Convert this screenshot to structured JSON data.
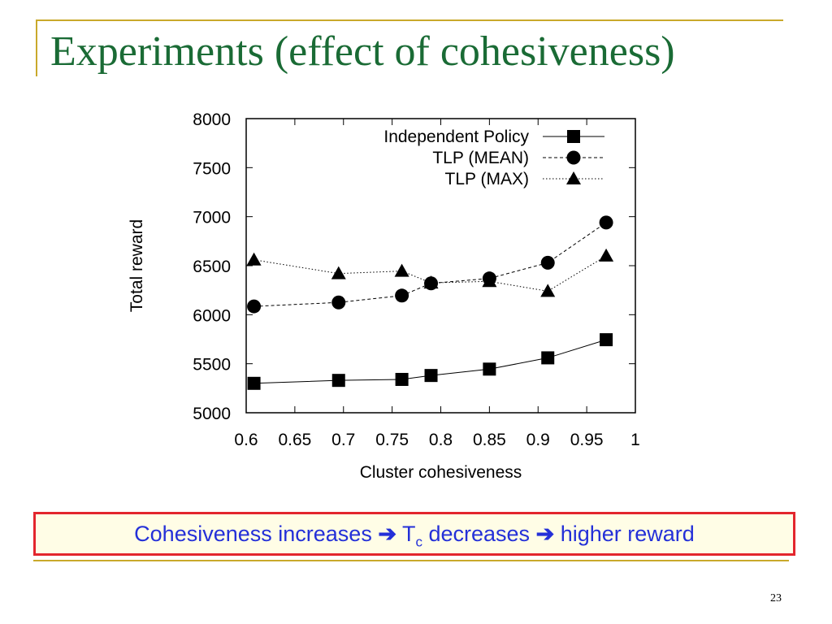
{
  "slide": {
    "title": "Experiments (effect of cohesiveness)",
    "page_number": "23",
    "colors": {
      "title": "#1a6b35",
      "frame": "#c9a92b",
      "callout_border": "#e3262d",
      "callout_text": "#2430d8",
      "callout_bg": "#fffde6"
    }
  },
  "callout": {
    "part1": "Cohesiveness increases",
    "arrow": "➔",
    "part2_prefix": "T",
    "part2_sub": "c",
    "part2_suffix": " decreases",
    "part3": "higher reward"
  },
  "chart_data": {
    "type": "line",
    "xlabel": "Cluster cohesiveness",
    "ylabel": "Total reward",
    "xlim": [
      0.6,
      1.0
    ],
    "ylim": [
      5000,
      8000
    ],
    "xticks": [
      "0.6",
      "0.65",
      "0.7",
      "0.75",
      "0.8",
      "0.85",
      "0.9",
      "0.95",
      "1"
    ],
    "yticks": [
      "5000",
      "5500",
      "6000",
      "6500",
      "7000",
      "7500",
      "8000"
    ],
    "grid": false,
    "legend_position": "top-right",
    "series": [
      {
        "name": "Independent Policy",
        "marker": "square",
        "line": "solid",
        "x": [
          0.608,
          0.695,
          0.76,
          0.79,
          0.85,
          0.91,
          0.97
        ],
        "y": [
          5300,
          5330,
          5340,
          5380,
          5445,
          5560,
          5745
        ]
      },
      {
        "name": "TLP (MEAN)",
        "marker": "circle",
        "line": "dashed",
        "x": [
          0.608,
          0.695,
          0.76,
          0.79,
          0.85,
          0.91,
          0.97
        ],
        "y": [
          6085,
          6125,
          6195,
          6320,
          6370,
          6530,
          6940
        ]
      },
      {
        "name": "TLP (MAX)",
        "marker": "triangle",
        "line": "dotted",
        "x": [
          0.608,
          0.695,
          0.76,
          0.79,
          0.85,
          0.91,
          0.97
        ],
        "y": [
          6560,
          6420,
          6445,
          6325,
          6340,
          6240,
          6600
        ]
      }
    ]
  }
}
